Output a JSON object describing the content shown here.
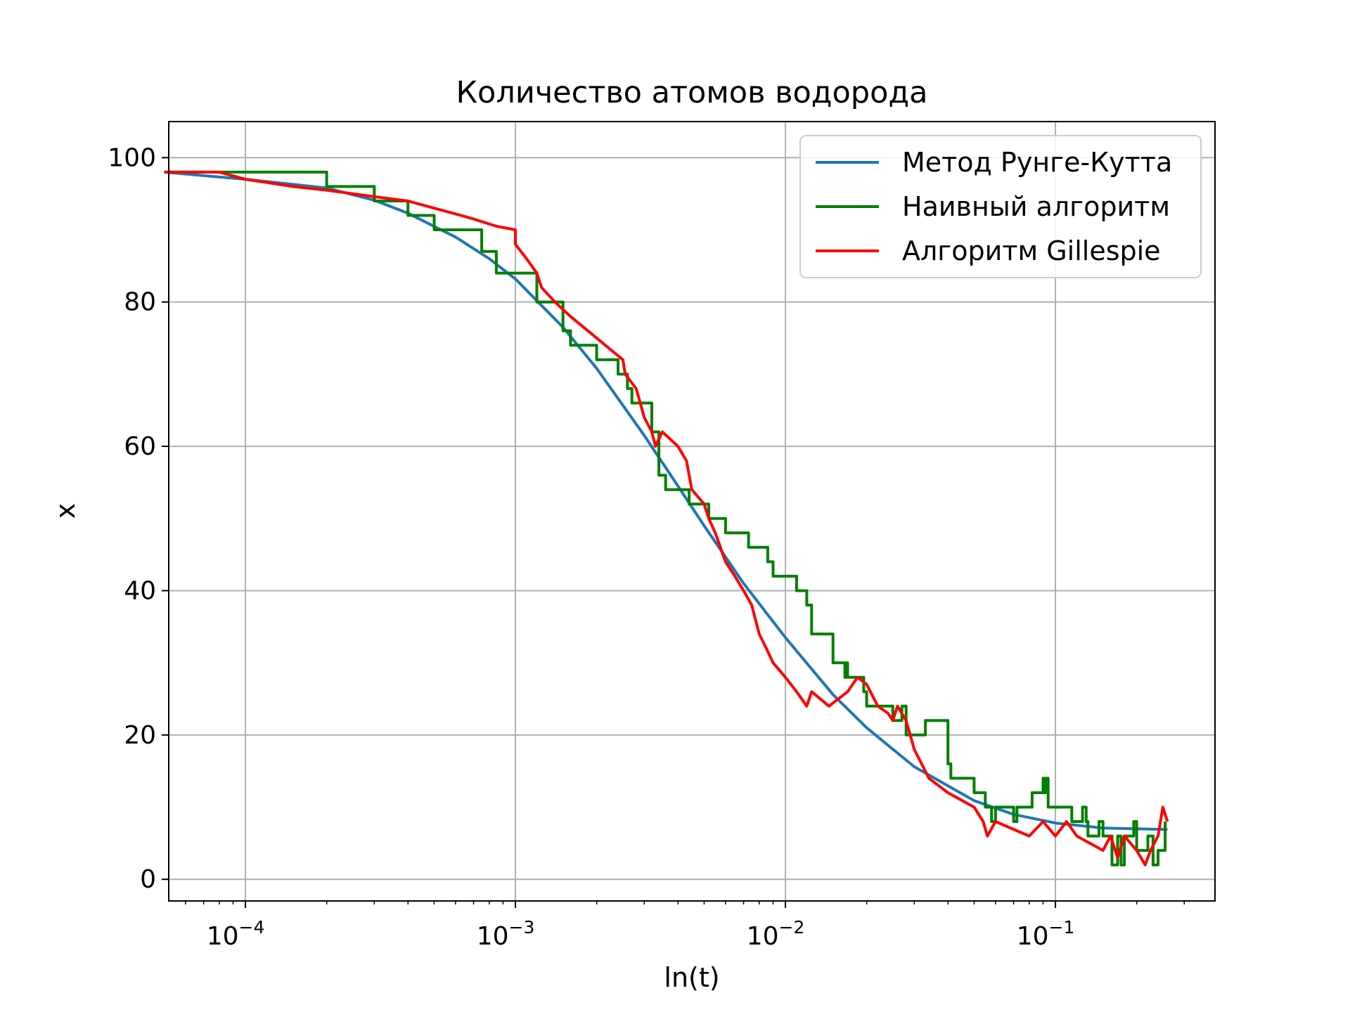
{
  "chart_data": {
    "type": "line",
    "title": "Количество атомов водорода",
    "xlabel": "ln(t)",
    "ylabel": "x",
    "xscale": "log",
    "xlim": [
      5.2e-05,
      0.39
    ],
    "ylim": [
      -3,
      105
    ],
    "grid": true,
    "legend_position": "top-right",
    "x_ticks": [
      {
        "value": 0.0001,
        "base": "10",
        "exp": "−4"
      },
      {
        "value": 0.001,
        "base": "10",
        "exp": "−3"
      },
      {
        "value": 0.01,
        "base": "10",
        "exp": "−2"
      },
      {
        "value": 0.1,
        "base": "10",
        "exp": "−1"
      }
    ],
    "y_ticks": [
      {
        "value": 0,
        "label": "0"
      },
      {
        "value": 20,
        "label": "20"
      },
      {
        "value": 40,
        "label": "40"
      },
      {
        "value": 60,
        "label": "60"
      },
      {
        "value": 80,
        "label": "80"
      },
      {
        "value": 100,
        "label": "100"
      }
    ],
    "series": [
      {
        "name": "Метод Рунге-Кутта",
        "color": "#1f77b4",
        "step": false,
        "points": [
          [
            5e-05,
            98.0
          ],
          [
            0.0001,
            97.0
          ],
          [
            0.0002,
            95.8
          ],
          [
            0.0003,
            94.1
          ],
          [
            0.0004,
            92.3
          ],
          [
            0.0006,
            89.0
          ],
          [
            0.0008,
            86.0
          ],
          [
            0.001,
            83.2
          ],
          [
            0.0015,
            76.5
          ],
          [
            0.002,
            70.8
          ],
          [
            0.003,
            61.5
          ],
          [
            0.004,
            54.5
          ],
          [
            0.005,
            49.0
          ],
          [
            0.007,
            41.0
          ],
          [
            0.01,
            33.5
          ],
          [
            0.015,
            25.6
          ],
          [
            0.02,
            21.0
          ],
          [
            0.03,
            15.6
          ],
          [
            0.05,
            10.9
          ],
          [
            0.07,
            9.0
          ],
          [
            0.1,
            7.8
          ],
          [
            0.15,
            7.1
          ],
          [
            0.26,
            6.9
          ]
        ]
      },
      {
        "name": "Наивный алгоритм",
        "color": "#008000",
        "step": true,
        "points": [
          [
            5e-05,
            98
          ],
          [
            0.0001,
            98
          ],
          [
            0.0002,
            96
          ],
          [
            0.0003,
            94
          ],
          [
            0.0004,
            92
          ],
          [
            0.0005,
            90
          ],
          [
            0.0006,
            90
          ],
          [
            0.00075,
            87
          ],
          [
            0.00085,
            84
          ],
          [
            0.001,
            84
          ],
          [
            0.0012,
            80
          ],
          [
            0.0013,
            80
          ],
          [
            0.0015,
            76
          ],
          [
            0.0016,
            74
          ],
          [
            0.0019,
            74
          ],
          [
            0.002,
            72
          ],
          [
            0.0023,
            72
          ],
          [
            0.0024,
            70
          ],
          [
            0.0026,
            68
          ],
          [
            0.0027,
            66
          ],
          [
            0.003,
            66
          ],
          [
            0.0032,
            62
          ],
          [
            0.0034,
            56
          ],
          [
            0.0036,
            54
          ],
          [
            0.0043,
            54
          ],
          [
            0.0044,
            52
          ],
          [
            0.005,
            52
          ],
          [
            0.0052,
            50
          ],
          [
            0.0059,
            50
          ],
          [
            0.006,
            48
          ],
          [
            0.0072,
            48
          ],
          [
            0.0073,
            46
          ],
          [
            0.0085,
            46
          ],
          [
            0.0086,
            44
          ],
          [
            0.0089,
            44
          ],
          [
            0.009,
            42
          ],
          [
            0.0105,
            42
          ],
          [
            0.011,
            40
          ],
          [
            0.012,
            38
          ],
          [
            0.0125,
            34
          ],
          [
            0.0145,
            34
          ],
          [
            0.015,
            30
          ],
          [
            0.0165,
            30
          ],
          [
            0.0166,
            28
          ],
          [
            0.0168,
            30
          ],
          [
            0.017,
            28
          ],
          [
            0.0195,
            26
          ],
          [
            0.02,
            24
          ],
          [
            0.0245,
            24
          ],
          [
            0.025,
            22
          ],
          [
            0.0265,
            22
          ],
          [
            0.027,
            24
          ],
          [
            0.028,
            20
          ],
          [
            0.032,
            20
          ],
          [
            0.033,
            22
          ],
          [
            0.039,
            22
          ],
          [
            0.04,
            16
          ],
          [
            0.041,
            14
          ],
          [
            0.045,
            14
          ],
          [
            0.05,
            12
          ],
          [
            0.055,
            10
          ],
          [
            0.058,
            8
          ],
          [
            0.06,
            10
          ],
          [
            0.068,
            10
          ],
          [
            0.07,
            8
          ],
          [
            0.072,
            10
          ],
          [
            0.08,
            10
          ],
          [
            0.082,
            12
          ],
          [
            0.088,
            12
          ],
          [
            0.09,
            14
          ],
          [
            0.091,
            12
          ],
          [
            0.092,
            14
          ],
          [
            0.094,
            10
          ],
          [
            0.11,
            10
          ],
          [
            0.115,
            8
          ],
          [
            0.125,
            8
          ],
          [
            0.126,
            10
          ],
          [
            0.13,
            8
          ],
          [
            0.132,
            6
          ],
          [
            0.14,
            6
          ],
          [
            0.145,
            8
          ],
          [
            0.15,
            6
          ],
          [
            0.16,
            6
          ],
          [
            0.162,
            2
          ],
          [
            0.17,
            6
          ],
          [
            0.175,
            2
          ],
          [
            0.18,
            6
          ],
          [
            0.19,
            6
          ],
          [
            0.195,
            8
          ],
          [
            0.2,
            4
          ],
          [
            0.21,
            4
          ],
          [
            0.22,
            6
          ],
          [
            0.23,
            2
          ],
          [
            0.24,
            4
          ],
          [
            0.255,
            8
          ]
        ]
      },
      {
        "name": "Алгоритм Gillespie",
        "color": "#ff0000",
        "step": false,
        "points": [
          [
            5e-05,
            98
          ],
          [
            8e-05,
            98
          ],
          [
            0.0001,
            97
          ],
          [
            0.00015,
            96
          ],
          [
            0.0002,
            95.5
          ],
          [
            0.00025,
            95
          ],
          [
            0.0003,
            94.6
          ],
          [
            0.0004,
            94
          ],
          [
            0.0005,
            93
          ],
          [
            0.0006,
            92.2
          ],
          [
            0.0007,
            91.5
          ],
          [
            0.00085,
            90.5
          ],
          [
            0.001,
            90
          ],
          [
            0.001,
            88
          ],
          [
            0.0011,
            86
          ],
          [
            0.0012,
            84
          ],
          [
            0.00125,
            82
          ],
          [
            0.0014,
            80
          ],
          [
            0.0016,
            78
          ],
          [
            0.002,
            75
          ],
          [
            0.0025,
            72
          ],
          [
            0.00255,
            70
          ],
          [
            0.0028,
            68
          ],
          [
            0.003,
            64
          ],
          [
            0.0032,
            62
          ],
          [
            0.0033,
            60
          ],
          [
            0.0035,
            62
          ],
          [
            0.004,
            60
          ],
          [
            0.0043,
            58
          ],
          [
            0.0045,
            54
          ],
          [
            0.005,
            52
          ],
          [
            0.0052,
            50
          ],
          [
            0.0055,
            48
          ],
          [
            0.006,
            44
          ],
          [
            0.0065,
            42
          ],
          [
            0.007,
            40
          ],
          [
            0.0075,
            38
          ],
          [
            0.008,
            34
          ],
          [
            0.0085,
            32
          ],
          [
            0.009,
            30
          ],
          [
            0.01,
            28
          ],
          [
            0.011,
            26
          ],
          [
            0.012,
            24
          ],
          [
            0.0125,
            26
          ],
          [
            0.0145,
            24
          ],
          [
            0.017,
            26
          ],
          [
            0.0185,
            28
          ],
          [
            0.02,
            27
          ],
          [
            0.022,
            24
          ],
          [
            0.024,
            23
          ],
          [
            0.025,
            22
          ],
          [
            0.026,
            24
          ],
          [
            0.028,
            22
          ],
          [
            0.03,
            18
          ],
          [
            0.034,
            14
          ],
          [
            0.04,
            12
          ],
          [
            0.05,
            10
          ],
          [
            0.054,
            8
          ],
          [
            0.056,
            6
          ],
          [
            0.06,
            8
          ],
          [
            0.08,
            6
          ],
          [
            0.09,
            8
          ],
          [
            0.1,
            6
          ],
          [
            0.11,
            8
          ],
          [
            0.12,
            6
          ],
          [
            0.15,
            4
          ],
          [
            0.16,
            6
          ],
          [
            0.17,
            3
          ],
          [
            0.18,
            6
          ],
          [
            0.2,
            4
          ],
          [
            0.215,
            2
          ],
          [
            0.225,
            4
          ],
          [
            0.24,
            6
          ],
          [
            0.25,
            10
          ],
          [
            0.26,
            8
          ]
        ]
      }
    ]
  }
}
